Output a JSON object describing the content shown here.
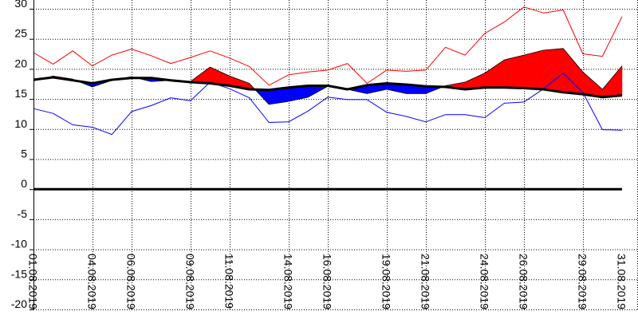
{
  "chart_data": {
    "type": "line",
    "title": "",
    "xlabel": "",
    "ylabel": "",
    "ylim": [
      -20,
      30
    ],
    "yticks": [
      30,
      25,
      20,
      15,
      10,
      5,
      0,
      -5,
      -10,
      -15,
      -20
    ],
    "grid": true,
    "x": [
      "01.08.2019",
      "02.08.2019",
      "03.08.2019",
      "04.08.2019",
      "05.08.2019",
      "06.08.2019",
      "07.08.2019",
      "08.08.2019",
      "09.08.2019",
      "10.08.2019",
      "11.08.2019",
      "12.08.2019",
      "13.08.2019",
      "14.08.2019",
      "15.08.2019",
      "16.08.2019",
      "17.08.2019",
      "18.08.2019",
      "19.08.2019",
      "20.08.2019",
      "21.08.2019",
      "22.08.2019",
      "23.08.2019",
      "24.08.2019",
      "25.08.2019",
      "26.08.2019",
      "27.08.2019",
      "28.08.2019",
      "29.08.2019",
      "30.08.2019",
      "31.08.2019"
    ],
    "xtick_labels": [
      "01.08.2019",
      "04.08.2019",
      "06.08.2019",
      "09.08.2019",
      "11.08.2019",
      "14.08.2019",
      "16.08.2019",
      "19.08.2019",
      "21.08.2019",
      "24.08.2019",
      "26.08.2019",
      "29.08.2019",
      "31.08.2019"
    ],
    "series": [
      {
        "role": "max",
        "color": "#ff0000",
        "values": [
          22.7,
          20.8,
          23.0,
          20.5,
          22.3,
          23.3,
          22.2,
          20.9,
          21.9,
          23.0,
          21.8,
          20.4,
          17.3,
          19.0,
          19.5,
          19.8,
          20.9,
          17.6,
          19.8,
          19.6,
          19.8,
          23.6,
          22.3,
          25.9,
          27.8,
          30.3,
          29.3,
          29.8,
          22.5,
          22.1,
          28.7
        ]
      },
      {
        "role": "min",
        "color": "#0000ff",
        "values": [
          13.4,
          12.6,
          10.7,
          10.3,
          9.1,
          12.9,
          13.9,
          15.2,
          14.7,
          17.8,
          16.7,
          15.2,
          11.1,
          11.2,
          13.0,
          15.3,
          14.9,
          14.9,
          12.8,
          12.1,
          11.2,
          12.4,
          12.4,
          11.9,
          14.3,
          14.5,
          16.7,
          19.3,
          16.1,
          9.9,
          9.8
        ]
      },
      {
        "role": "mean",
        "color": "#ff0000",
        "values": [
          18.0,
          18.8,
          18.3,
          17.0,
          18.1,
          18.7,
          17.9,
          18.1,
          17.9,
          20.3,
          18.8,
          17.6,
          14.1,
          14.6,
          15.3,
          17.1,
          16.6,
          15.9,
          16.6,
          15.9,
          15.9,
          17.2,
          17.8,
          19.3,
          21.5,
          22.3,
          23.1,
          23.4,
          19.5,
          16.6,
          20.5
        ]
      },
      {
        "role": "normal",
        "color": "#000000",
        "values": [
          18.2,
          18.6,
          18.1,
          17.6,
          18.2,
          18.5,
          18.5,
          18.1,
          17.8,
          17.6,
          17.2,
          16.6,
          16.5,
          16.9,
          17.2,
          17.2,
          16.6,
          17.3,
          17.6,
          17.4,
          17.1,
          17.0,
          16.6,
          16.9,
          16.9,
          16.8,
          16.6,
          16.1,
          15.8,
          15.3,
          15.6
        ]
      }
    ],
    "fills": {
      "above": "#ff0000",
      "below": "#0000ff"
    }
  }
}
